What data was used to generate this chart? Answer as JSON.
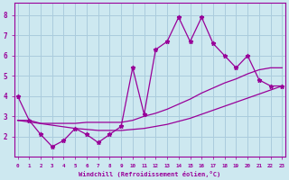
{
  "xlabel": "Windchill (Refroidissement éolien,°C)",
  "background_color": "#cde8f0",
  "line_color": "#990099",
  "grid_color": "#aaccdd",
  "x_data": [
    0,
    1,
    2,
    3,
    4,
    5,
    6,
    7,
    8,
    9,
    10,
    11,
    12,
    13,
    14,
    15,
    16,
    17,
    18,
    19,
    20,
    21,
    22,
    23
  ],
  "y_main": [
    4.0,
    2.8,
    2.1,
    1.5,
    1.8,
    2.4,
    2.1,
    1.7,
    2.1,
    2.5,
    5.4,
    3.1,
    6.3,
    6.7,
    7.9,
    6.7,
    7.9,
    6.6,
    6.0,
    5.4,
    6.0,
    4.8,
    4.5,
    4.5
  ],
  "y_reg_lower": [
    2.8,
    2.72,
    2.64,
    2.56,
    2.48,
    2.4,
    2.35,
    2.3,
    2.3,
    2.3,
    2.35,
    2.4,
    2.5,
    2.6,
    2.75,
    2.9,
    3.1,
    3.3,
    3.5,
    3.7,
    3.9,
    4.1,
    4.3,
    4.5
  ],
  "y_reg_upper": [
    2.8,
    2.8,
    2.65,
    2.65,
    2.65,
    2.65,
    2.7,
    2.7,
    2.7,
    2.7,
    2.8,
    3.0,
    3.15,
    3.35,
    3.6,
    3.85,
    4.15,
    4.4,
    4.65,
    4.85,
    5.1,
    5.3,
    5.4,
    5.4
  ],
  "xlim": [
    -0.3,
    23.3
  ],
  "ylim": [
    1.0,
    8.6
  ],
  "yticks": [
    2,
    3,
    4,
    5,
    6,
    7,
    8
  ],
  "xticks": [
    0,
    1,
    2,
    3,
    4,
    5,
    6,
    7,
    8,
    9,
    10,
    11,
    12,
    13,
    14,
    15,
    16,
    17,
    18,
    19,
    20,
    21,
    22,
    23
  ]
}
